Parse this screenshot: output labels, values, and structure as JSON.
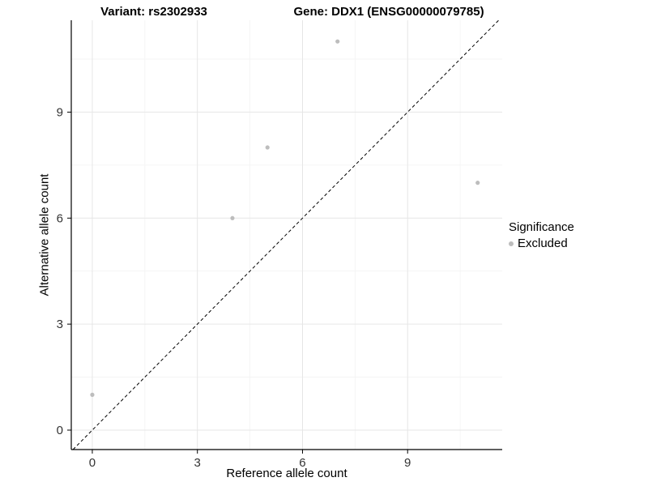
{
  "header": {
    "variant_title": "Variant: rs2302933",
    "gene_title": "Gene: DDX1 (ENSG00000079785)"
  },
  "chart_data": {
    "type": "scatter",
    "xlabel": "Reference allele count",
    "ylabel": "Alternative allele count",
    "xticks": [
      0,
      3,
      6,
      9
    ],
    "yticks": [
      0,
      3,
      6,
      9
    ],
    "xlim": [
      -0.6,
      11.7
    ],
    "ylim": [
      -0.55,
      11.6
    ],
    "grid": true,
    "grid_major_color": "#e6e6e6",
    "grid_minor_color": "#f3f3f3",
    "axis_color": "#000000",
    "tick_label_color": "#333333",
    "reference_line": {
      "type": "identity",
      "style": "dashed",
      "color": "#000000"
    },
    "legend": {
      "title": "Significance",
      "position": "right"
    },
    "series": [
      {
        "name": "Excluded",
        "color": "#bdbdbd",
        "points": [
          [
            0,
            1
          ],
          [
            4,
            6
          ],
          [
            5,
            8
          ],
          [
            7,
            11
          ],
          [
            11,
            7
          ]
        ]
      }
    ]
  }
}
